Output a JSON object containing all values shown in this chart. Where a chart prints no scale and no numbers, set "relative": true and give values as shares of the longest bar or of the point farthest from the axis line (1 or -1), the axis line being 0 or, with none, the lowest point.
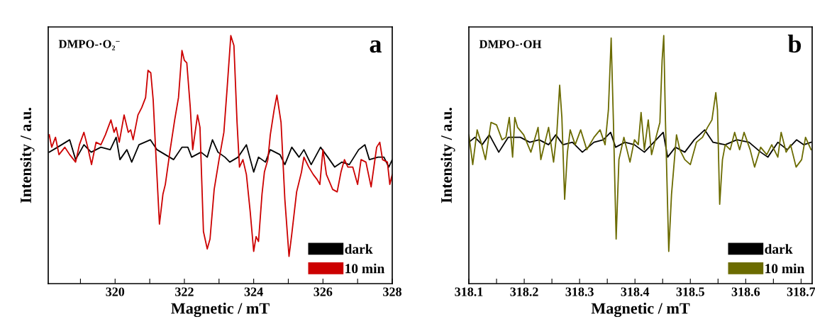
{
  "chart_data": [
    {
      "type": "line",
      "relative": true,
      "xlabel": "Magnetic / mT",
      "ylabel": "Intensity / a.u.",
      "tick_labels": "x",
      "legend": "bottom right",
      "grid": false,
      "marker": "none",
      "line_style": "solid",
      "annotations": [
        "DMPO-·O₂$^{−}$",
        "a"
      ],
      "xlim": [
        318.07,
        328.0
      ],
      "xticks": [
        {
          "value": 319,
          "label": null
        },
        320,
        {
          "value": 321,
          "label": null
        },
        322,
        {
          "value": 323,
          "label": null
        },
        324,
        {
          "value": 325,
          "label": null
        },
        326,
        {
          "value": 327,
          "label": null
        },
        328
      ],
      "series": [
        {
          "name": "dark",
          "color": "#000000",
          "x": [
            318.1,
            318.34,
            318.69,
            318.86,
            319.1,
            319.31,
            319.59,
            319.86,
            320.03,
            320.14,
            320.34,
            320.48,
            320.69,
            321.02,
            321.21,
            321.45,
            321.69,
            321.93,
            322.1,
            322.21,
            322.48,
            322.66,
            322.81,
            322.97,
            323.17,
            323.31,
            323.55,
            323.79,
            324.0,
            324.14,
            324.34,
            324.48,
            324.76,
            324.9,
            325.1,
            325.31,
            325.45,
            325.66,
            325.93,
            326.14,
            326.34,
            326.55,
            326.76,
            327.03,
            327.21,
            327.34,
            327.59,
            327.76,
            327.9,
            328.0
          ],
          "values": [
            0.53,
            0.55,
            0.58,
            0.5,
            0.56,
            0.53,
            0.55,
            0.54,
            0.59,
            0.5,
            0.54,
            0.49,
            0.56,
            0.58,
            0.54,
            0.52,
            0.5,
            0.55,
            0.55,
            0.51,
            0.53,
            0.51,
            0.58,
            0.53,
            0.51,
            0.49,
            0.51,
            0.56,
            0.45,
            0.51,
            0.49,
            0.54,
            0.52,
            0.48,
            0.55,
            0.51,
            0.54,
            0.48,
            0.55,
            0.51,
            0.47,
            0.49,
            0.48,
            0.54,
            0.56,
            0.5,
            0.51,
            0.51,
            0.47,
            0.5
          ]
        },
        {
          "name": "10 min",
          "color": "#cc0000",
          "x": [
            318.1,
            318.17,
            318.28,
            318.38,
            318.55,
            318.69,
            318.86,
            318.97,
            319.1,
            319.21,
            319.32,
            319.45,
            319.59,
            319.72,
            319.88,
            319.97,
            320.03,
            320.12,
            320.26,
            320.38,
            320.45,
            320.52,
            320.66,
            320.77,
            320.88,
            320.95,
            321.03,
            321.1,
            321.17,
            321.28,
            321.38,
            321.45,
            321.59,
            321.72,
            321.83,
            321.93,
            322.0,
            322.07,
            322.17,
            322.24,
            322.38,
            322.45,
            322.55,
            322.66,
            322.74,
            322.86,
            323.0,
            323.14,
            323.23,
            323.34,
            323.43,
            323.52,
            323.59,
            323.69,
            323.79,
            323.9,
            324.0,
            324.07,
            324.14,
            324.24,
            324.31,
            324.41,
            324.48,
            324.59,
            324.67,
            324.79,
            324.9,
            325.02,
            325.1,
            325.24,
            325.38,
            325.45,
            325.59,
            325.72,
            325.83,
            325.91,
            326.0,
            326.1,
            326.28,
            326.41,
            326.52,
            326.62,
            326.72,
            326.86,
            327.0,
            327.1,
            327.24,
            327.39,
            327.55,
            327.64,
            327.72,
            327.86,
            327.93,
            328.0
          ],
          "values": [
            0.6,
            0.55,
            0.59,
            0.52,
            0.55,
            0.52,
            0.49,
            0.56,
            0.61,
            0.55,
            0.48,
            0.57,
            0.56,
            0.6,
            0.66,
            0.61,
            0.63,
            0.57,
            0.68,
            0.61,
            0.62,
            0.58,
            0.68,
            0.71,
            0.75,
            0.86,
            0.85,
            0.74,
            0.54,
            0.24,
            0.36,
            0.4,
            0.54,
            0.66,
            0.75,
            0.94,
            0.9,
            0.89,
            0.71,
            0.54,
            0.68,
            0.63,
            0.21,
            0.14,
            0.18,
            0.38,
            0.5,
            0.61,
            0.78,
            1.0,
            0.96,
            0.65,
            0.47,
            0.5,
            0.44,
            0.29,
            0.13,
            0.19,
            0.17,
            0.36,
            0.45,
            0.5,
            0.6,
            0.7,
            0.76,
            0.65,
            0.34,
            0.11,
            0.2,
            0.37,
            0.45,
            0.51,
            0.47,
            0.44,
            0.42,
            0.4,
            0.54,
            0.44,
            0.38,
            0.37,
            0.45,
            0.5,
            0.47,
            0.47,
            0.4,
            0.5,
            0.49,
            0.39,
            0.55,
            0.57,
            0.5,
            0.49,
            0.4,
            0.44
          ]
        }
      ]
    },
    {
      "type": "line",
      "relative": true,
      "xlabel": "Magnetic / mT",
      "ylabel": "Intensity / a.u.",
      "tick_labels": "x",
      "legend": "bottom right",
      "grid": false,
      "marker": "none",
      "line_style": "solid",
      "annotations": [
        "DMPO-·OH",
        "b"
      ],
      "xlim": [
        318.1,
        318.72
      ],
      "xticks": [
        318.1,
        {
          "value": 318.15,
          "label": null
        },
        318.2,
        {
          "value": 318.25,
          "label": null
        },
        318.3,
        {
          "value": 318.35,
          "label": null
        },
        318.4,
        {
          "value": 318.45,
          "label": null
        },
        318.5,
        {
          "value": 318.55,
          "label": null
        },
        318.6,
        {
          "value": 318.65,
          "label": null
        },
        318.7
      ],
      "series": [
        {
          "name": "dark",
          "color": "#000000",
          "x": [
            318.1,
            318.111,
            318.124,
            318.137,
            318.154,
            318.171,
            318.193,
            318.21,
            318.227,
            318.244,
            318.257,
            318.27,
            318.287,
            318.305,
            318.326,
            318.343,
            318.356,
            318.365,
            318.382,
            318.399,
            318.417,
            318.434,
            318.451,
            318.459,
            318.473,
            318.49,
            318.507,
            318.526,
            318.541,
            318.563,
            318.584,
            318.606,
            318.627,
            318.64,
            318.658,
            318.675,
            318.692,
            318.705,
            318.718
          ],
          "values": [
            0.57,
            0.59,
            0.56,
            0.6,
            0.53,
            0.59,
            0.59,
            0.57,
            0.58,
            0.56,
            0.6,
            0.56,
            0.57,
            0.53,
            0.57,
            0.58,
            0.61,
            0.55,
            0.57,
            0.56,
            0.53,
            0.57,
            0.61,
            0.51,
            0.55,
            0.53,
            0.58,
            0.62,
            0.57,
            0.56,
            0.58,
            0.57,
            0.53,
            0.51,
            0.57,
            0.54,
            0.58,
            0.56,
            0.57
          ]
        },
        {
          "name": "10 min",
          "color": "#6b6b00",
          "x": [
            318.1,
            318.107,
            318.115,
            318.122,
            318.13,
            318.14,
            318.15,
            318.16,
            318.167,
            318.173,
            318.179,
            318.183,
            318.188,
            318.199,
            318.212,
            318.225,
            318.23,
            318.244,
            318.253,
            318.259,
            318.264,
            318.268,
            318.273,
            318.278,
            318.283,
            318.292,
            318.302,
            318.313,
            318.326,
            318.337,
            318.346,
            318.352,
            318.357,
            318.361,
            318.366,
            318.371,
            318.38,
            318.391,
            318.399,
            318.406,
            318.411,
            318.417,
            318.424,
            318.43,
            318.438,
            318.445,
            318.449,
            318.452,
            318.455,
            318.461,
            318.466,
            318.469,
            318.475,
            318.481,
            318.49,
            318.5,
            318.511,
            318.522,
            318.531,
            318.539,
            318.546,
            318.549,
            318.553,
            318.558,
            318.563,
            318.572,
            318.58,
            318.589,
            318.597,
            318.608,
            318.616,
            318.627,
            318.638,
            318.647,
            318.658,
            318.664,
            318.673,
            318.681,
            318.691,
            318.701,
            318.708,
            318.718
          ],
          "values": [
            0.6,
            0.48,
            0.62,
            0.57,
            0.5,
            0.65,
            0.64,
            0.58,
            0.59,
            0.67,
            0.51,
            0.67,
            0.63,
            0.6,
            0.53,
            0.63,
            0.5,
            0.63,
            0.49,
            0.61,
            0.8,
            0.67,
            0.34,
            0.53,
            0.62,
            0.56,
            0.62,
            0.54,
            0.59,
            0.62,
            0.56,
            0.7,
            0.99,
            0.66,
            0.18,
            0.5,
            0.59,
            0.49,
            0.58,
            0.56,
            0.69,
            0.54,
            0.66,
            0.52,
            0.59,
            0.65,
            0.9,
            1.0,
            0.66,
            0.13,
            0.36,
            0.44,
            0.6,
            0.54,
            0.5,
            0.48,
            0.57,
            0.59,
            0.63,
            0.66,
            0.77,
            0.7,
            0.32,
            0.5,
            0.56,
            0.54,
            0.61,
            0.54,
            0.61,
            0.54,
            0.47,
            0.55,
            0.52,
            0.56,
            0.51,
            0.61,
            0.53,
            0.56,
            0.47,
            0.5,
            0.59,
            0.54
          ]
        }
      ]
    }
  ]
}
